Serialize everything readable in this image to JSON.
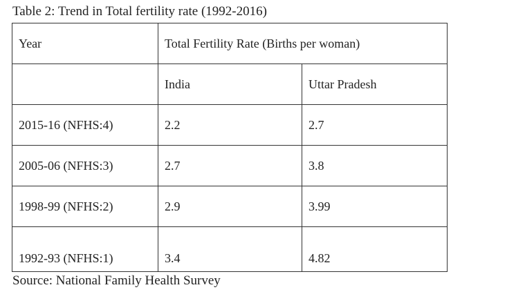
{
  "caption": "Table 2: Trend in Total fertility rate (1992-2016)",
  "table": {
    "header": {
      "year_label": "Year",
      "rate_label": "Total Fertility Rate (Births per woman)"
    },
    "subheader": {
      "blank": "",
      "india": "India",
      "up": "Uttar Pradesh"
    },
    "rows": [
      {
        "year": "2015-16 (NFHS:4)",
        "india": "2.2",
        "up": "2.7"
      },
      {
        "year": "2005-06 (NFHS:3)",
        "india": "2.7",
        "up": "3.8"
      },
      {
        "year": "1998-99 (NFHS:2)",
        "india": "2.9",
        "up": "3.99"
      },
      {
        "year": "1992-93 (NFHS:1)",
        "india": "3.4",
        "up": "4.82"
      }
    ]
  },
  "source": "Source: National Family Health Survey"
}
